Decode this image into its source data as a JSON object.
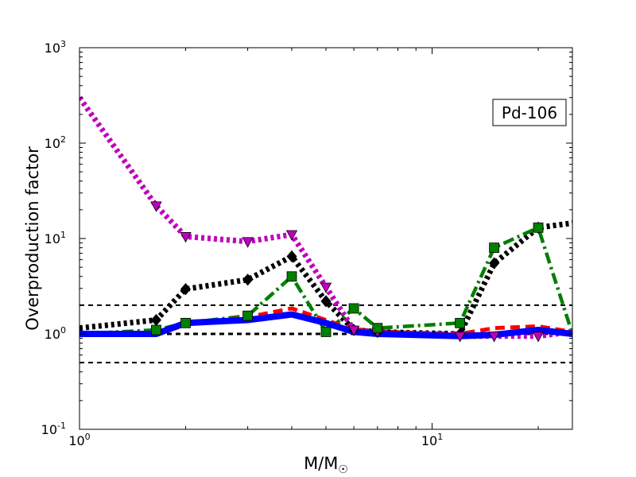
{
  "chart_data": {
    "type": "line",
    "title": "",
    "annotation": "Pd-106",
    "xlabel": "M/M☉",
    "ylabel": "Overproduction factor",
    "xscale": "log",
    "yscale": "log",
    "xlim": [
      1,
      25
    ],
    "ylim": [
      0.1,
      1000
    ],
    "grid": false,
    "legend": "none",
    "x_ticks": [
      {
        "value": 1,
        "base": "10",
        "exp": "0"
      },
      {
        "value": 10,
        "base": "10",
        "exp": "1"
      }
    ],
    "y_ticks": [
      {
        "value": 0.1,
        "base": "10",
        "exp": "-1"
      },
      {
        "value": 1,
        "base": "10",
        "exp": "0"
      },
      {
        "value": 10,
        "base": "10",
        "exp": "1"
      },
      {
        "value": 100,
        "base": "10",
        "exp": "2"
      },
      {
        "value": 1000,
        "base": "10",
        "exp": "3"
      }
    ],
    "reference_lines": [
      {
        "y": 2.0,
        "color": "#000000",
        "style": "dashed"
      },
      {
        "y": 1.0,
        "color": "#000000",
        "style": "dashed"
      },
      {
        "y": 0.5,
        "color": "#000000",
        "style": "dashed"
      }
    ],
    "series": [
      {
        "color": "#0000ff",
        "style": "solid",
        "marker": "none",
        "x": [
          1,
          1.65,
          2,
          3,
          4,
          5,
          6,
          7,
          12,
          15,
          20,
          25
        ],
        "y": [
          1.0,
          1.0,
          1.3,
          1.4,
          1.6,
          1.3,
          1.05,
          1.0,
          0.95,
          0.98,
          1.1,
          1.0
        ]
      },
      {
        "color": "#ff0000",
        "style": "dashed",
        "marker": "none",
        "x": [
          1,
          1.65,
          2,
          3,
          4,
          5,
          6,
          7,
          12,
          15,
          20,
          25
        ],
        "y": [
          1.0,
          0.98,
          1.25,
          1.5,
          1.85,
          1.4,
          1.1,
          1.05,
          1.0,
          1.15,
          1.2,
          1.05
        ]
      },
      {
        "color": "#007f00",
        "style": "dashdot",
        "marker": "square",
        "x": [
          1,
          1.65,
          2,
          3,
          4,
          5,
          6,
          7,
          12,
          15,
          20,
          25
        ],
        "y": [
          1.0,
          1.1,
          1.3,
          1.55,
          4.0,
          1.05,
          1.85,
          1.15,
          1.3,
          8.0,
          13.0,
          1.0
        ]
      },
      {
        "color": "#000000",
        "style": "dotted",
        "marker": "diamond",
        "x": [
          1,
          1.65,
          2,
          3,
          4,
          5,
          6,
          7,
          12,
          15,
          20,
          25
        ],
        "y": [
          1.15,
          1.4,
          2.95,
          3.7,
          6.5,
          2.2,
          1.1,
          1.05,
          1.0,
          5.5,
          13.0,
          14.5
        ]
      },
      {
        "color": "#bf00bf",
        "style": "dotted",
        "marker": "triangle-down",
        "x": [
          1,
          1.65,
          2,
          3,
          4,
          5,
          6,
          7,
          12,
          15,
          20,
          25
        ],
        "y": [
          300,
          22,
          10.5,
          9.3,
          11.0,
          3.1,
          1.1,
          1.05,
          0.95,
          0.95,
          0.95,
          1.05
        ]
      }
    ]
  }
}
